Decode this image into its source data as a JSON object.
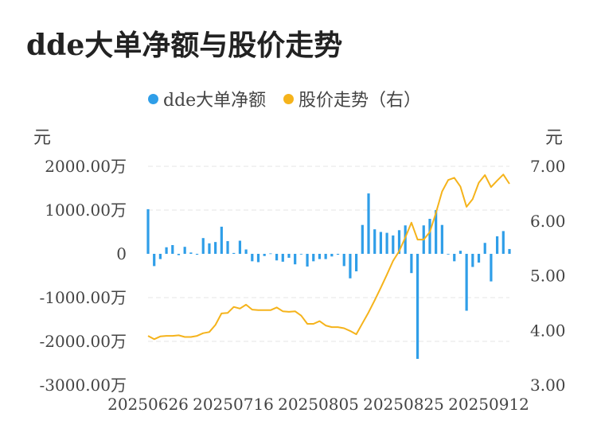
{
  "title": "dde大单净额与股价走势",
  "legend": [
    {
      "name": "dde大单净额",
      "color": "#2f9ee8"
    },
    {
      "name": "股价走势（右）",
      "color": "#f5b31b"
    }
  ],
  "units": {
    "left": "元",
    "right": "元"
  },
  "chart_data": {
    "type": "bar+line",
    "title": "dde大单净额与股价走势",
    "x_tick_labels": [
      "20250626",
      "20250716",
      "20250805",
      "20250825",
      "20250912"
    ],
    "left_axis": {
      "ticks": [
        "2000.00万",
        "1000.00万",
        "0",
        "-1000.00万",
        "-2000.00万",
        "-3000.00万"
      ],
      "ylim": [
        -3000,
        2000
      ]
    },
    "right_axis": {
      "ticks": [
        "7.00",
        "6.00",
        "5.00",
        "4.00",
        "3.00"
      ],
      "ylim": [
        3,
        7
      ]
    },
    "grid": true,
    "legend_position": "top-center",
    "series": [
      {
        "name": "dde大单净额",
        "type": "bar",
        "axis": "left",
        "color": "#2f9ee8",
        "values": [
          1020,
          -280,
          -120,
          150,
          200,
          -30,
          160,
          30,
          -20,
          360,
          240,
          270,
          620,
          290,
          20,
          300,
          100,
          -170,
          -190,
          -50,
          10,
          -150,
          -180,
          -90,
          -240,
          -10,
          -290,
          -170,
          -120,
          -120,
          -60,
          -20,
          -280,
          -560,
          -400,
          660,
          1380,
          560,
          500,
          480,
          420,
          540,
          650,
          -440,
          -2400,
          650,
          800,
          1000,
          660,
          -10,
          -170,
          70,
          -1300,
          -300,
          -200,
          250,
          -630,
          400,
          520,
          110
        ]
      },
      {
        "name": "股价走势（右）",
        "type": "line",
        "axis": "right",
        "color": "#f5b31b",
        "values": [
          3.9,
          3.84,
          3.89,
          3.9,
          3.9,
          3.91,
          3.88,
          3.88,
          3.9,
          3.95,
          3.97,
          4.1,
          4.31,
          4.32,
          4.43,
          4.4,
          4.47,
          4.38,
          4.37,
          4.37,
          4.37,
          4.42,
          4.35,
          4.34,
          4.35,
          4.27,
          4.12,
          4.12,
          4.17,
          4.09,
          4.06,
          4.06,
          4.04,
          3.99,
          3.93,
          4.13,
          4.33,
          4.55,
          4.78,
          5.02,
          5.27,
          5.45,
          5.7,
          5.97,
          5.66,
          5.66,
          5.8,
          6.15,
          6.54,
          6.75,
          6.79,
          6.63,
          6.26,
          6.4,
          6.7,
          6.84,
          6.62,
          6.74,
          6.85,
          6.68
        ]
      }
    ]
  }
}
